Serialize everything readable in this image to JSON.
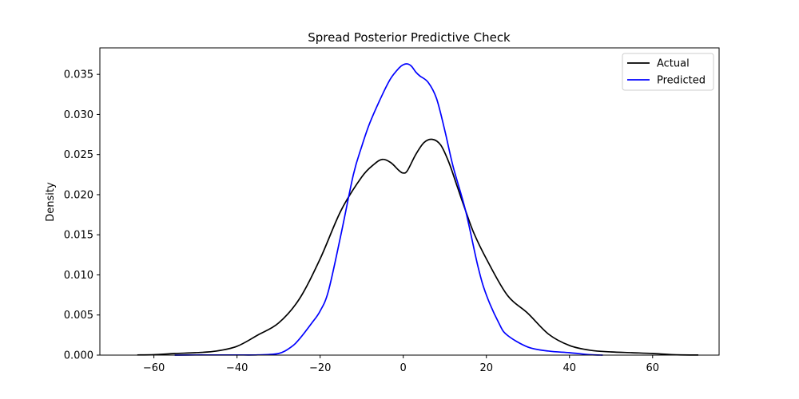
{
  "chart_data": {
    "type": "line",
    "title": "Spread Posterior Predictive Check",
    "xlabel": "",
    "ylabel": "Density",
    "xlim": [
      -73,
      76
    ],
    "ylim": [
      0,
      0.0383
    ],
    "x_ticks": [
      -60,
      -40,
      -20,
      0,
      20,
      40,
      60
    ],
    "x_tick_labels": [
      "−60",
      "−40",
      "−20",
      "0",
      "20",
      "40",
      "60"
    ],
    "y_ticks": [
      0.0,
      0.005,
      0.01,
      0.015,
      0.02,
      0.025,
      0.03,
      0.035
    ],
    "y_tick_labels": [
      "0.000",
      "0.005",
      "0.010",
      "0.015",
      "0.020",
      "0.025",
      "0.030",
      "0.035"
    ],
    "grid": false,
    "legend_position": "top-right",
    "series": [
      {
        "name": "Actual",
        "color": "#000000",
        "x": [
          -64,
          -60,
          -55,
          -50,
          -45,
          -40,
          -35,
          -30,
          -25,
          -20,
          -15,
          -10,
          -7,
          -5,
          -3,
          -1,
          0,
          1,
          3,
          5,
          7,
          9,
          11,
          13,
          15,
          17,
          20,
          25,
          30,
          35,
          40,
          45,
          50,
          55,
          60,
          65,
          71
        ],
        "y": [
          2e-05,
          5e-05,
          0.0002,
          0.0003,
          0.0005,
          0.0011,
          0.0025,
          0.004,
          0.007,
          0.012,
          0.018,
          0.0222,
          0.0238,
          0.0244,
          0.024,
          0.023,
          0.0227,
          0.023,
          0.025,
          0.0265,
          0.0269,
          0.0262,
          0.024,
          0.021,
          0.018,
          0.0152,
          0.012,
          0.0075,
          0.0052,
          0.0026,
          0.0012,
          0.0006,
          0.0004,
          0.0003,
          0.0002,
          5e-05,
          1e-05
        ]
      },
      {
        "name": "Predicted",
        "color": "#0000ff",
        "x": [
          -55,
          -50,
          -45,
          -40,
          -35,
          -30,
          -27,
          -25,
          -22,
          -20,
          -18,
          -15,
          -12,
          -10,
          -8,
          -5,
          -3,
          -1,
          0,
          1,
          2,
          3,
          4,
          6,
          8,
          10,
          12,
          15,
          18,
          20,
          23,
          25,
          30,
          35,
          40,
          45,
          48
        ],
        "y": [
          0.0,
          2e-05,
          2e-05,
          2e-05,
          3e-05,
          0.0002,
          0.001,
          0.002,
          0.004,
          0.0055,
          0.008,
          0.015,
          0.0225,
          0.026,
          0.029,
          0.0325,
          0.0345,
          0.0358,
          0.0362,
          0.0363,
          0.036,
          0.0353,
          0.0348,
          0.034,
          0.032,
          0.028,
          0.0235,
          0.018,
          0.011,
          0.0075,
          0.004,
          0.0025,
          0.001,
          0.0005,
          0.0003,
          5e-05,
          0.0
        ]
      }
    ]
  }
}
